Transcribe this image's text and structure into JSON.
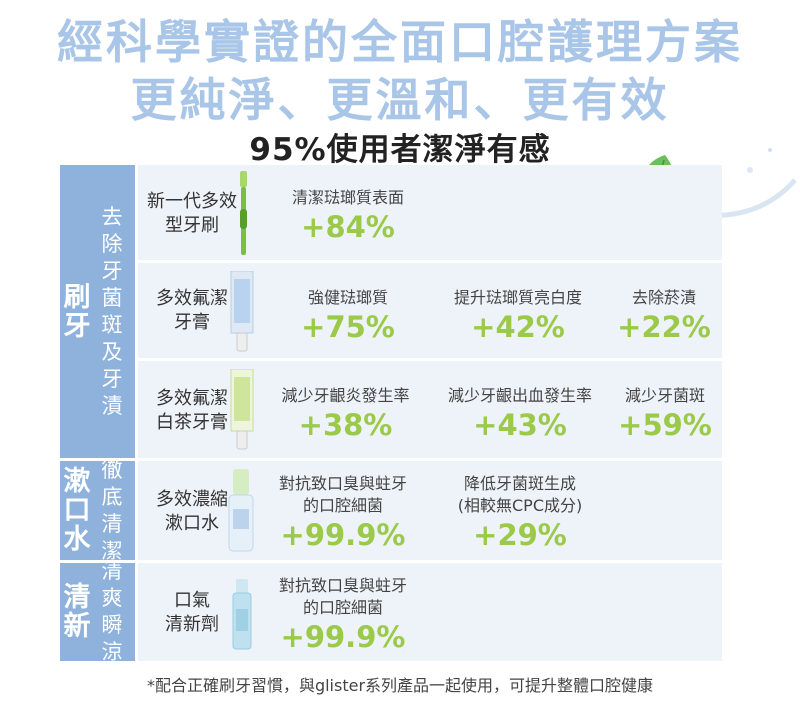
{
  "header": {
    "line1": "經科學實證的全面口腔護理方案",
    "line2": "更純淨、更溫和、更有效",
    "subtitle": "95%使用者潔淨有感"
  },
  "colors": {
    "band": "#8fb2dc",
    "accent_green": "#9bc94a",
    "row_bg": "#eef3f9",
    "headline": "#a9c6e8"
  },
  "sections": [
    {
      "main": "刷牙",
      "sub": "去除牙菌斑及牙漬"
    },
    {
      "main": "漱口水",
      "sub": "徹底清潔"
    },
    {
      "main": "清新",
      "sub": "清爽瞬涼"
    }
  ],
  "rows": [
    {
      "product": "新一代多效型牙刷",
      "product_icon": "toothbrush-icon",
      "claims": [
        {
          "label": "清潔琺瑯質表面",
          "value": "+84%"
        }
      ]
    },
    {
      "product": "多效氟潔牙膏",
      "product_icon": "toothpaste-tube-icon",
      "claims": [
        {
          "label": "強健琺瑯質",
          "value": "+75%"
        },
        {
          "label": "提升琺瑯質亮白度",
          "value": "+42%"
        },
        {
          "label": "去除菸漬",
          "value": "+22%"
        }
      ]
    },
    {
      "product": "多效氟潔白茶牙膏",
      "product_icon": "green-tea-toothpaste-icon",
      "claims": [
        {
          "label": "減少牙齦炎發生率",
          "value": "+38%"
        },
        {
          "label": "減少牙齦出血發生率",
          "value": "+43%"
        },
        {
          "label": "減少牙菌斑",
          "value": "+59%"
        }
      ]
    },
    {
      "product": "多效濃縮漱口水",
      "product_icon": "mouthwash-bottle-icon",
      "claims": [
        {
          "label": "對抗致口臭與蛀牙的口腔細菌",
          "label_line1": "對抗致口臭與蛀牙",
          "label_line2": "的口腔細菌",
          "value": "+99.9%"
        },
        {
          "label": "降低牙菌斑生成",
          "label_line2": "(相較無CPC成分)",
          "value": "+29%"
        }
      ]
    },
    {
      "product": "口氣清新劑",
      "product_icon": "breath-spray-icon",
      "claims": [
        {
          "label_line1": "對抗致口臭與蛀牙",
          "label_line2": "的口腔細菌",
          "value": "+99.9%"
        }
      ]
    }
  ],
  "footnote": "*配合正確刷牙習慣，與glister系列產品一起使用，可提升整體口腔健康"
}
